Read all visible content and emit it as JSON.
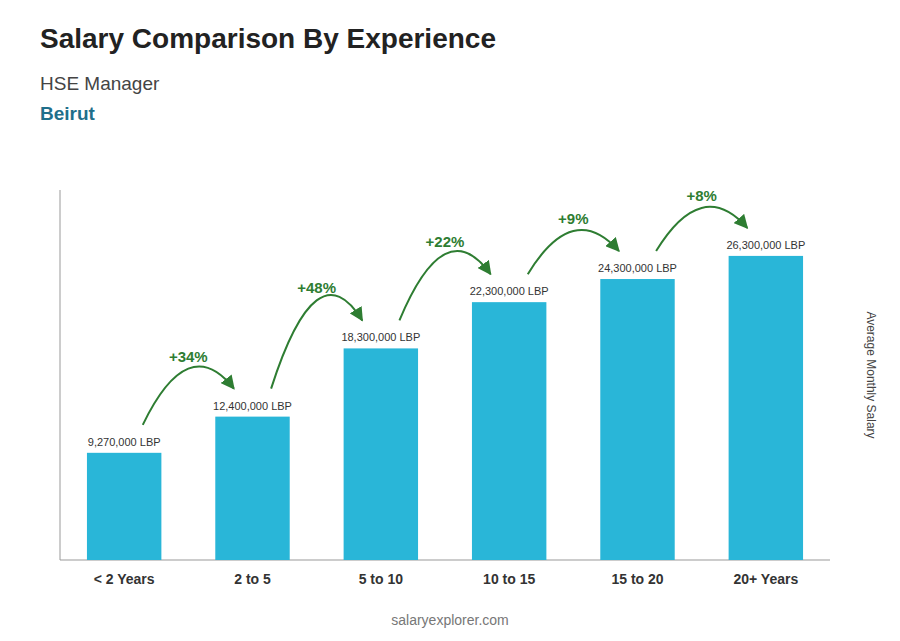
{
  "chart_data": {
    "type": "bar",
    "title": "Salary Comparison By Experience",
    "subtitle": [
      "HSE Manager",
      "Beirut"
    ],
    "categories": [
      "< 2 Years",
      "2 to 5",
      "5 to 10",
      "10 to 15",
      "15 to 20",
      "20+ Years"
    ],
    "values": [
      9270000,
      12400000,
      18300000,
      22300000,
      24300000,
      26300000
    ],
    "value_labels": [
      "9,270,000 LBP",
      "12,400,000 LBP",
      "18,300,000 LBP",
      "22,300,000 LBP",
      "24,300,000 LBP",
      "26,300,000 LBP"
    ],
    "data_labels": true,
    "annotations": [
      "+34%",
      "+48%",
      "+22%",
      "+9%",
      "+8%"
    ],
    "ylabel": "Average Monthly Salary",
    "source": "salaryexplorer.com",
    "color": "#29b6d8",
    "ylim": [
      0,
      32000000
    ],
    "tick_labels": "x"
  }
}
